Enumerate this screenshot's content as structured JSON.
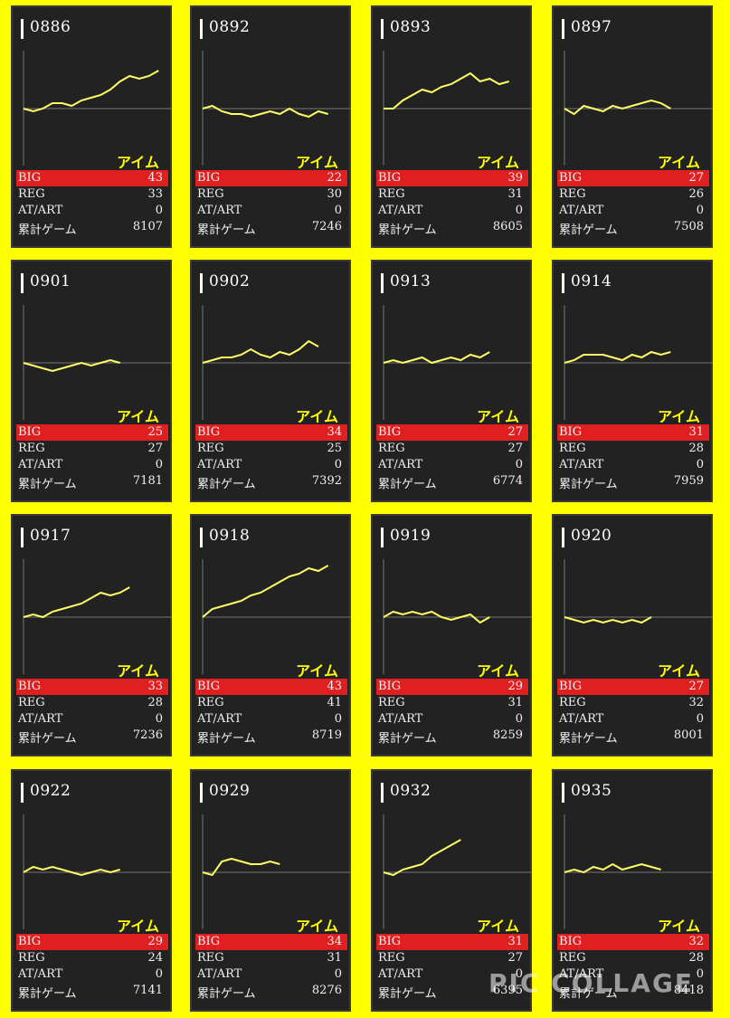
{
  "machine_label": "アイム",
  "labels": {
    "big": "BIG",
    "reg": "REG",
    "at": "AT/ART",
    "total": "累計ゲーム"
  },
  "colors": {
    "background": "#ffff00",
    "card": "#222222",
    "graph_line": "#ffff66",
    "big_row": "#e02020",
    "machine_text": "#ffff00"
  },
  "watermark": "PIC COLLAGE",
  "cards": [
    {
      "id": "0886",
      "big": "43",
      "reg": "33",
      "at": "0",
      "total": "8107",
      "trend": [
        0.0,
        -0.1,
        0.0,
        0.2,
        0.2,
        0.1,
        0.3,
        0.4,
        0.5,
        0.7,
        1.0,
        1.2,
        1.1,
        1.2,
        1.4
      ]
    },
    {
      "id": "0892",
      "big": "22",
      "reg": "30",
      "at": "0",
      "total": "7246",
      "trend": [
        0.0,
        0.1,
        -0.1,
        -0.2,
        -0.2,
        -0.3,
        -0.2,
        -0.1,
        -0.2,
        0.0,
        -0.2,
        -0.3,
        -0.1,
        -0.2
      ]
    },
    {
      "id": "0893",
      "big": "39",
      "reg": "31",
      "at": "0",
      "total": "8605",
      "trend": [
        0.0,
        0.0,
        0.3,
        0.5,
        0.7,
        0.6,
        0.8,
        0.9,
        1.1,
        1.3,
        1.0,
        1.1,
        0.9,
        1.0
      ]
    },
    {
      "id": "0897",
      "big": "27",
      "reg": "26",
      "at": "0",
      "total": "7508",
      "trend": [
        0.0,
        -0.2,
        0.1,
        0.0,
        -0.1,
        0.1,
        0.0,
        0.1,
        0.2,
        0.3,
        0.2,
        0.0
      ]
    },
    {
      "id": "0901",
      "big": "25",
      "reg": "27",
      "at": "0",
      "total": "7181",
      "trend": [
        0.0,
        -0.1,
        -0.2,
        -0.3,
        -0.2,
        -0.1,
        0.0,
        -0.1,
        0.0,
        0.1,
        0.0
      ]
    },
    {
      "id": "0902",
      "big": "34",
      "reg": "25",
      "at": "0",
      "total": "7392",
      "trend": [
        0.0,
        0.1,
        0.2,
        0.2,
        0.3,
        0.5,
        0.3,
        0.2,
        0.4,
        0.3,
        0.5,
        0.8,
        0.6
      ]
    },
    {
      "id": "0913",
      "big": "27",
      "reg": "27",
      "at": "0",
      "total": "6774",
      "trend": [
        0.0,
        0.1,
        0.0,
        0.1,
        0.2,
        0.0,
        0.1,
        0.2,
        0.1,
        0.3,
        0.2,
        0.4
      ]
    },
    {
      "id": "0914",
      "big": "31",
      "reg": "28",
      "at": "0",
      "total": "7959",
      "trend": [
        0.0,
        0.1,
        0.3,
        0.3,
        0.3,
        0.2,
        0.1,
        0.3,
        0.2,
        0.4,
        0.3,
        0.4
      ]
    },
    {
      "id": "0917",
      "big": "33",
      "reg": "28",
      "at": "0",
      "total": "7236",
      "trend": [
        0.0,
        0.1,
        0.0,
        0.2,
        0.3,
        0.4,
        0.5,
        0.7,
        0.9,
        0.8,
        0.9,
        1.1
      ]
    },
    {
      "id": "0918",
      "big": "43",
      "reg": "41",
      "at": "0",
      "total": "8719",
      "trend": [
        0.0,
        0.3,
        0.4,
        0.5,
        0.6,
        0.8,
        0.9,
        1.1,
        1.3,
        1.5,
        1.6,
        1.8,
        1.7,
        1.9
      ]
    },
    {
      "id": "0919",
      "big": "29",
      "reg": "31",
      "at": "0",
      "total": "8259",
      "trend": [
        0.0,
        0.2,
        0.1,
        0.2,
        0.1,
        0.2,
        0.0,
        -0.1,
        0.0,
        0.1,
        -0.2,
        0.0
      ]
    },
    {
      "id": "0920",
      "big": "27",
      "reg": "32",
      "at": "0",
      "total": "8001",
      "trend": [
        0.0,
        -0.1,
        -0.2,
        -0.1,
        -0.2,
        -0.1,
        -0.2,
        -0.1,
        -0.2,
        0.0
      ]
    },
    {
      "id": "0922",
      "big": "29",
      "reg": "24",
      "at": "0",
      "total": "7141",
      "trend": [
        0.0,
        0.2,
        0.1,
        0.2,
        0.1,
        0.0,
        -0.1,
        0.0,
        0.1,
        0.0,
        0.1
      ]
    },
    {
      "id": "0929",
      "big": "34",
      "reg": "31",
      "at": "0",
      "total": "8276",
      "trend": [
        0.0,
        -0.1,
        0.4,
        0.5,
        0.4,
        0.3,
        0.3,
        0.4,
        0.3
      ]
    },
    {
      "id": "0932",
      "big": "31",
      "reg": "27",
      "at": "0",
      "total": "6395",
      "trend": [
        0.0,
        -0.1,
        0.1,
        0.2,
        0.3,
        0.6,
        0.8,
        1.0,
        1.2
      ]
    },
    {
      "id": "0935",
      "big": "32",
      "reg": "28",
      "at": "0",
      "total": "8418",
      "trend": [
        0.0,
        0.1,
        0.0,
        0.2,
        0.1,
        0.3,
        0.1,
        0.2,
        0.3,
        0.2,
        0.1
      ]
    }
  ]
}
